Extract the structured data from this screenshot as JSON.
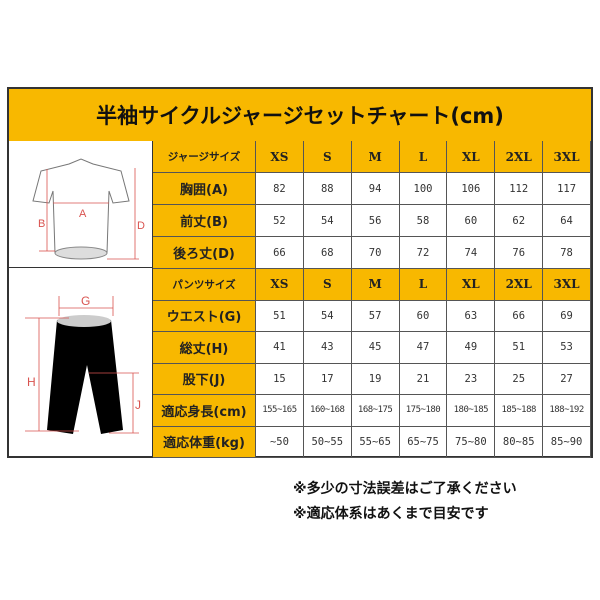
{
  "title": "半袖サイクルジャージセットチャート(cm)",
  "sizes": [
    "XS",
    "S",
    "M",
    "L",
    "XL",
    "2XL",
    "3XL"
  ],
  "jersey": {
    "header": "ジャージサイズ",
    "diagram_labels": [
      "A",
      "B",
      "D"
    ],
    "rows": [
      {
        "label": "胸囲(A)",
        "values": [
          "82",
          "88",
          "94",
          "100",
          "106",
          "112",
          "117"
        ]
      },
      {
        "label": "前丈(B)",
        "values": [
          "52",
          "54",
          "56",
          "58",
          "60",
          "62",
          "64"
        ]
      },
      {
        "label": "後ろ丈(D)",
        "values": [
          "66",
          "68",
          "70",
          "72",
          "74",
          "76",
          "78"
        ]
      }
    ]
  },
  "pants": {
    "header": "パンツサイズ",
    "diagram_labels": [
      "G",
      "H",
      "J"
    ],
    "rows": [
      {
        "label": "ウエスト(G)",
        "values": [
          "51",
          "54",
          "57",
          "60",
          "63",
          "66",
          "69"
        ]
      },
      {
        "label": "総丈(H)",
        "values": [
          "41",
          "43",
          "45",
          "47",
          "49",
          "51",
          "53"
        ]
      },
      {
        "label": "股下(J)",
        "values": [
          "15",
          "17",
          "19",
          "21",
          "23",
          "25",
          "27"
        ]
      },
      {
        "label": "適応身長(cm)",
        "values": [
          "155~165",
          "160~168",
          "168~175",
          "175~180",
          "180~185",
          "185~188",
          "188~192"
        ]
      },
      {
        "label": "適応体重(kg)",
        "values": [
          "~50",
          "50~55",
          "55~65",
          "65~75",
          "75~80",
          "80~85",
          "85~90"
        ]
      }
    ]
  },
  "notes": [
    "※多少の寸法誤差はご了承ください",
    "※適応体系はあくまで目安です"
  ],
  "colors": {
    "header_bg": "#F8B800",
    "border": "#333333",
    "measure_line": "#d9534f"
  }
}
